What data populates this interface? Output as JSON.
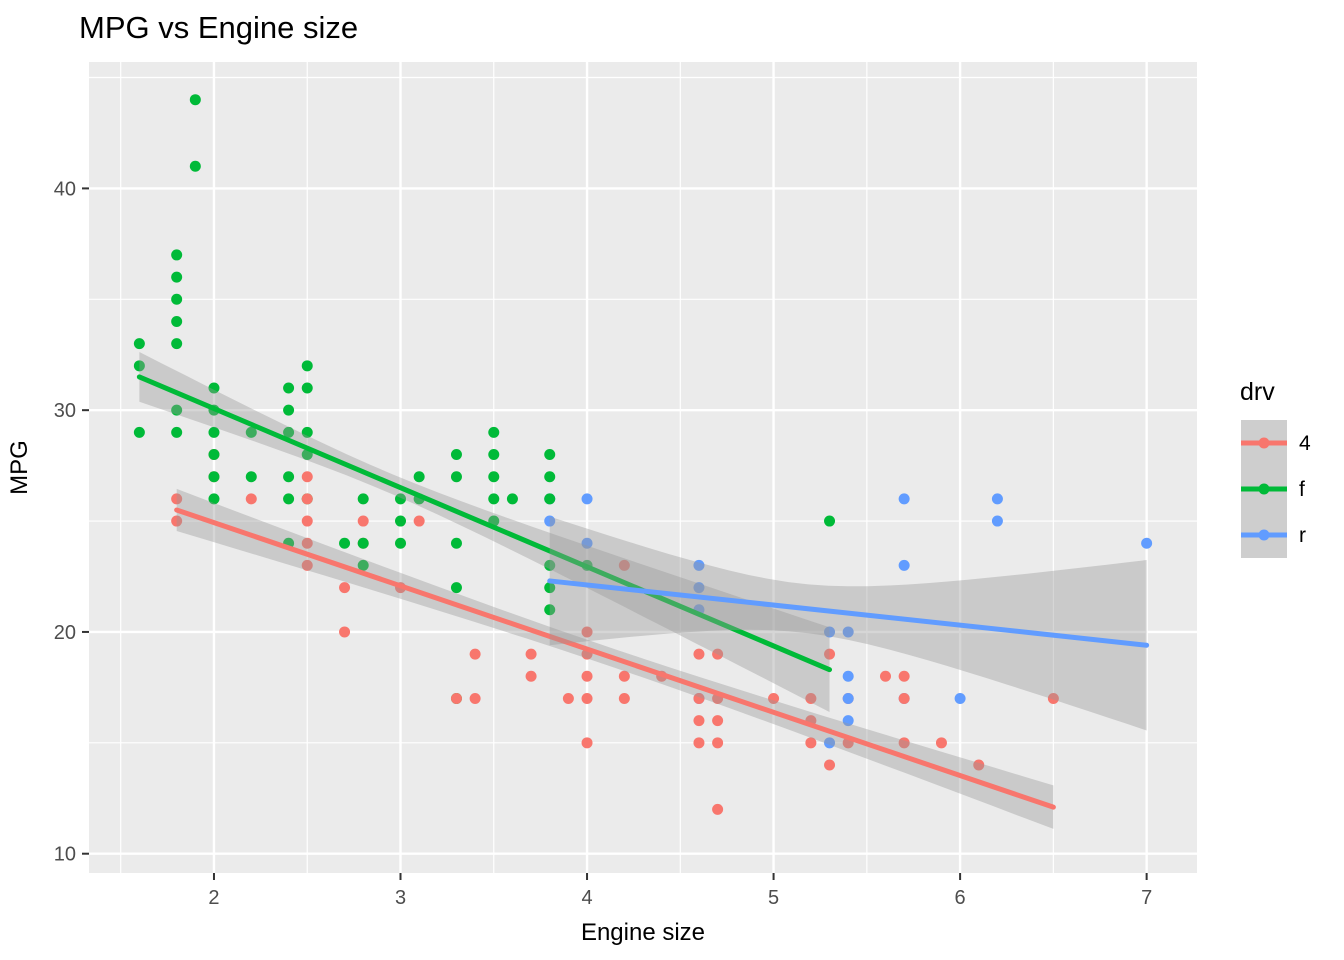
{
  "title": "MPG vs Engine size",
  "chart_data": {
    "type": "scatter",
    "title": "MPG vs Engine size",
    "xlabel": "Engine size",
    "ylabel": "MPG",
    "xlim": [
      1.33,
      7.27
    ],
    "ylim": [
      9.13,
      45.7
    ],
    "x_major_ticks": [
      2,
      3,
      4,
      5,
      6,
      7
    ],
    "x_minor_ticks": [
      1.5,
      2.5,
      3.5,
      4.5,
      5.5,
      6.5
    ],
    "y_major_ticks": [
      10,
      20,
      30,
      40
    ],
    "y_minor_ticks": [
      15,
      25,
      35,
      45
    ],
    "grid": true,
    "legend": {
      "title": "drv",
      "position": "right",
      "entries": [
        {
          "label": "4",
          "color": "#F8766D"
        },
        {
          "label": "f",
          "color": "#00BA38"
        },
        {
          "label": "r",
          "color": "#619CFF"
        }
      ]
    },
    "series_colors": {
      "4": "#F8766D",
      "f": "#00BA38",
      "r": "#619CFF"
    },
    "points": [
      [
        1.8,
        29,
        "f"
      ],
      [
        2.0,
        31,
        "f"
      ],
      [
        2.0,
        30,
        "f"
      ],
      [
        2.8,
        26,
        "f"
      ],
      [
        3.1,
        27,
        "f"
      ],
      [
        1.8,
        26,
        "4"
      ],
      [
        1.8,
        25,
        "4"
      ],
      [
        2.0,
        28,
        "4"
      ],
      [
        2.0,
        27,
        "4"
      ],
      [
        2.8,
        25,
        "4"
      ],
      [
        3.1,
        25,
        "4"
      ],
      [
        2.8,
        24,
        "4"
      ],
      [
        4.2,
        23,
        "4"
      ],
      [
        5.3,
        20,
        "r"
      ],
      [
        5.3,
        15,
        "r"
      ],
      [
        5.7,
        17,
        "r"
      ],
      [
        6.0,
        17,
        "r"
      ],
      [
        5.7,
        26,
        "r"
      ],
      [
        5.7,
        23,
        "r"
      ],
      [
        6.2,
        26,
        "r"
      ],
      [
        6.2,
        25,
        "r"
      ],
      [
        7.0,
        24,
        "r"
      ],
      [
        5.3,
        14,
        "4"
      ],
      [
        5.3,
        19,
        "4"
      ],
      [
        5.7,
        15,
        "4"
      ],
      [
        6.5,
        17,
        "4"
      ],
      [
        2.4,
        27,
        "f"
      ],
      [
        2.4,
        30,
        "f"
      ],
      [
        3.1,
        26,
        "f"
      ],
      [
        3.5,
        29,
        "f"
      ],
      [
        3.6,
        26,
        "f"
      ],
      [
        2.4,
        24,
        "f"
      ],
      [
        3.0,
        24,
        "f"
      ],
      [
        3.3,
        22,
        "f"
      ],
      [
        3.3,
        24,
        "f"
      ],
      [
        3.3,
        17,
        "f"
      ],
      [
        3.8,
        22,
        "f"
      ],
      [
        3.8,
        21,
        "f"
      ],
      [
        3.8,
        23,
        "f"
      ],
      [
        4.0,
        23,
        "f"
      ],
      [
        3.7,
        19,
        "4"
      ],
      [
        3.7,
        18,
        "4"
      ],
      [
        3.9,
        17,
        "4"
      ],
      [
        4.7,
        19,
        "4"
      ],
      [
        5.2,
        17,
        "4"
      ],
      [
        5.2,
        15,
        "4"
      ],
      [
        4.7,
        17,
        "4"
      ],
      [
        4.7,
        12,
        "4"
      ],
      [
        5.2,
        16,
        "4"
      ],
      [
        5.7,
        18,
        "4"
      ],
      [
        5.9,
        15,
        "4"
      ],
      [
        4.7,
        16,
        "4"
      ],
      [
        5.7,
        17,
        "4"
      ],
      [
        4.6,
        17,
        "r"
      ],
      [
        5.4,
        18,
        "r"
      ],
      [
        4.0,
        17,
        "4"
      ],
      [
        4.0,
        19,
        "4"
      ],
      [
        4.6,
        19,
        "4"
      ],
      [
        4.2,
        17,
        "4"
      ],
      [
        4.6,
        16,
        "4"
      ],
      [
        4.6,
        17,
        "4"
      ],
      [
        5.4,
        15,
        "4"
      ],
      [
        5.4,
        17,
        "4"
      ],
      [
        3.8,
        26,
        "r"
      ],
      [
        3.8,
        25,
        "r"
      ],
      [
        4.0,
        26,
        "r"
      ],
      [
        4.0,
        24,
        "r"
      ],
      [
        4.6,
        21,
        "r"
      ],
      [
        4.6,
        22,
        "r"
      ],
      [
        4.6,
        23,
        "r"
      ],
      [
        5.4,
        20,
        "r"
      ],
      [
        1.6,
        33,
        "f"
      ],
      [
        1.6,
        32,
        "f"
      ],
      [
        1.6,
        29,
        "f"
      ],
      [
        1.8,
        34,
        "f"
      ],
      [
        1.8,
        36,
        "f"
      ],
      [
        2.0,
        29,
        "f"
      ],
      [
        2.4,
        26,
        "f"
      ],
      [
        2.4,
        31,
        "f"
      ],
      [
        2.5,
        26,
        "f"
      ],
      [
        3.3,
        28,
        "f"
      ],
      [
        2.0,
        26,
        "f"
      ],
      [
        2.0,
        28,
        "f"
      ],
      [
        2.0,
        27,
        "f"
      ],
      [
        2.7,
        24,
        "f"
      ],
      [
        3.0,
        22,
        "4"
      ],
      [
        4.0,
        20,
        "4"
      ],
      [
        6.1,
        14,
        "4"
      ],
      [
        4.0,
        15,
        "4"
      ],
      [
        4.2,
        18,
        "4"
      ],
      [
        4.4,
        18,
        "4"
      ],
      [
        4.6,
        15,
        "4"
      ],
      [
        5.4,
        17,
        "r"
      ],
      [
        5.4,
        16,
        "r"
      ],
      [
        5.0,
        17,
        "4"
      ],
      [
        2.4,
        29,
        "f"
      ],
      [
        2.5,
        31,
        "f"
      ],
      [
        2.5,
        32,
        "f"
      ],
      [
        3.5,
        27,
        "f"
      ],
      [
        3.5,
        26,
        "f"
      ],
      [
        3.0,
        26,
        "f"
      ],
      [
        3.0,
        25,
        "f"
      ],
      [
        3.5,
        25,
        "f"
      ],
      [
        3.3,
        17,
        "4"
      ],
      [
        5.6,
        18,
        "4"
      ],
      [
        3.8,
        26,
        "f"
      ],
      [
        3.8,
        27,
        "f"
      ],
      [
        3.8,
        28,
        "f"
      ],
      [
        5.3,
        25,
        "f"
      ],
      [
        2.5,
        25,
        "4"
      ],
      [
        2.5,
        24,
        "4"
      ],
      [
        2.5,
        27,
        "4"
      ],
      [
        2.5,
        26,
        "4"
      ],
      [
        2.5,
        23,
        "4"
      ],
      [
        2.2,
        26,
        "4"
      ],
      [
        2.7,
        20,
        "4"
      ],
      [
        3.4,
        19,
        "4"
      ],
      [
        3.4,
        17,
        "4"
      ],
      [
        2.2,
        29,
        "f"
      ],
      [
        2.2,
        27,
        "f"
      ],
      [
        3.5,
        28,
        "f"
      ],
      [
        3.3,
        27,
        "f"
      ],
      [
        1.8,
        30,
        "f"
      ],
      [
        1.8,
        33,
        "f"
      ],
      [
        1.8,
        35,
        "f"
      ],
      [
        1.8,
        37,
        "f"
      ],
      [
        4.7,
        15,
        "4"
      ],
      [
        2.7,
        22,
        "4"
      ],
      [
        4.0,
        18,
        "4"
      ],
      [
        2.8,
        24,
        "f"
      ],
      [
        1.9,
        44,
        "f"
      ],
      [
        2.5,
        29,
        "f"
      ],
      [
        2.8,
        23,
        "f"
      ],
      [
        1.9,
        41,
        "f"
      ],
      [
        2.5,
        28,
        "f"
      ]
    ],
    "smooths": [
      {
        "name": "4",
        "color": "#F8766D",
        "x0": 1.8,
        "y0": 25.5,
        "x1": 6.5,
        "y1": 12.1,
        "xbar": 4.1,
        "ci_a": 0.42,
        "ci_b": 0.37
      },
      {
        "name": "f",
        "color": "#00BA38",
        "x0": 1.6,
        "y0": 31.5,
        "x1": 5.3,
        "y1": 18.3,
        "xbar": 2.92,
        "ci_a": 0.45,
        "ci_b": 0.78
      },
      {
        "name": "r",
        "color": "#619CFF",
        "x0": 3.8,
        "y0": 22.3,
        "x1": 7.0,
        "y1": 19.4,
        "xbar": 5.15,
        "ci_a": 1.1,
        "ci_b": 1.99
      }
    ],
    "style": {
      "panel_bg": "#EBEBEB",
      "grid_color": "#FFFFFF",
      "ribbon_fill": "rgba(153,153,153,0.40)",
      "tick_label_color": "#4D4D4D",
      "tick_mark_color": "#333333",
      "text_color": "#000000",
      "legend_key_bg": "#F2F2F2",
      "point_radius": 5.5,
      "line_width": 5
    }
  }
}
